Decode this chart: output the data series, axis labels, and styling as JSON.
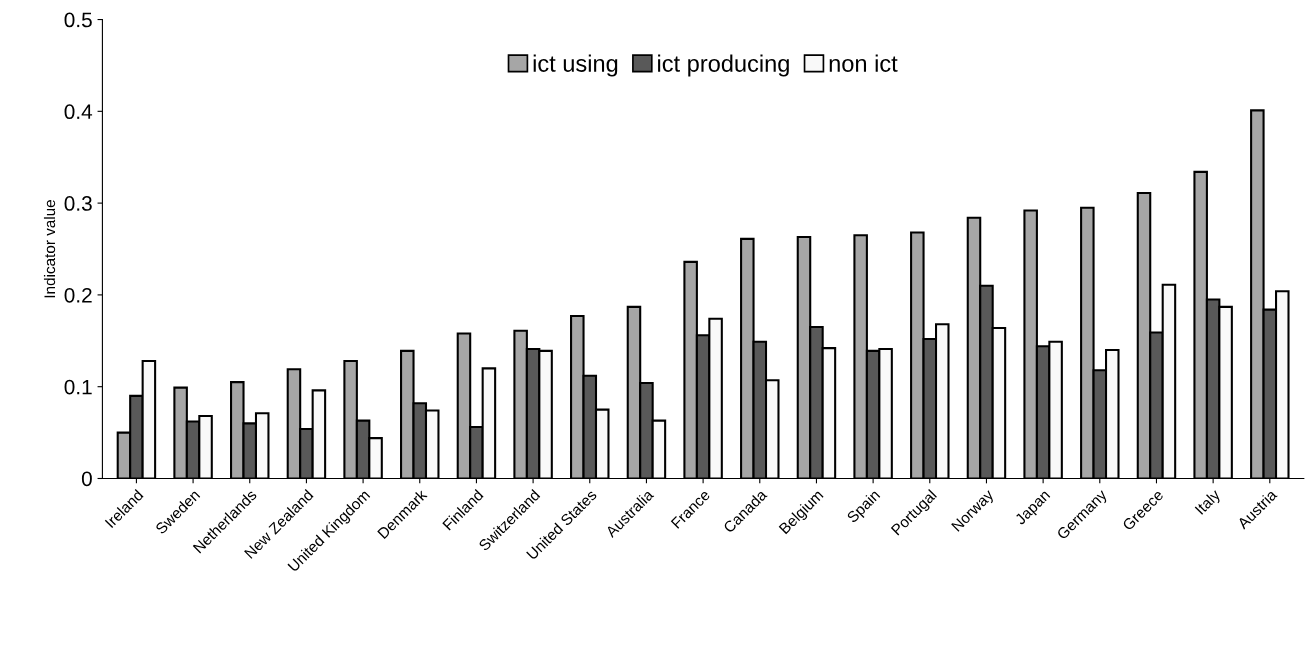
{
  "chart_data": {
    "type": "bar",
    "ylabel": "Indicator value",
    "categories": [
      "Ireland",
      "Sweden",
      "Netherlands",
      "New Zealand",
      "United Kingdom",
      "Denmark",
      "Finland",
      "Switzerland",
      "United States",
      "Australia",
      "France",
      "Canada",
      "Belgium",
      "Spain",
      "Portugal",
      "Norway",
      "Japan",
      "Germany",
      "Greece",
      "Italy",
      "Austria"
    ],
    "series": [
      {
        "name": "ict using",
        "color": "#a6a6a6",
        "values": [
          0.05,
          0.099,
          0.105,
          0.119,
          0.128,
          0.139,
          0.158,
          0.161,
          0.177,
          0.187,
          0.236,
          0.261,
          0.263,
          0.265,
          0.268,
          0.284,
          0.292,
          0.295,
          0.311,
          0.334,
          0.401
        ]
      },
      {
        "name": "ict producing",
        "color": "#595959",
        "values": [
          0.09,
          0.062,
          0.06,
          0.054,
          0.063,
          0.082,
          0.056,
          0.141,
          0.112,
          0.104,
          0.156,
          0.149,
          0.165,
          0.139,
          0.152,
          0.21,
          0.144,
          0.118,
          0.159,
          0.195,
          0.184
        ]
      },
      {
        "name": "non ict",
        "color": "#f9f9f9",
        "values": [
          0.128,
          0.068,
          0.071,
          0.096,
          0.044,
          0.074,
          0.12,
          0.139,
          0.075,
          0.063,
          0.174,
          0.107,
          0.142,
          0.141,
          0.168,
          0.164,
          0.149,
          0.14,
          0.211,
          0.187,
          0.204
        ]
      }
    ],
    "ylim": [
      0,
      0.5
    ],
    "yticks": [
      0,
      0.1,
      0.2,
      0.3,
      0.4,
      0.5
    ],
    "grid": false,
    "legend": "top"
  }
}
